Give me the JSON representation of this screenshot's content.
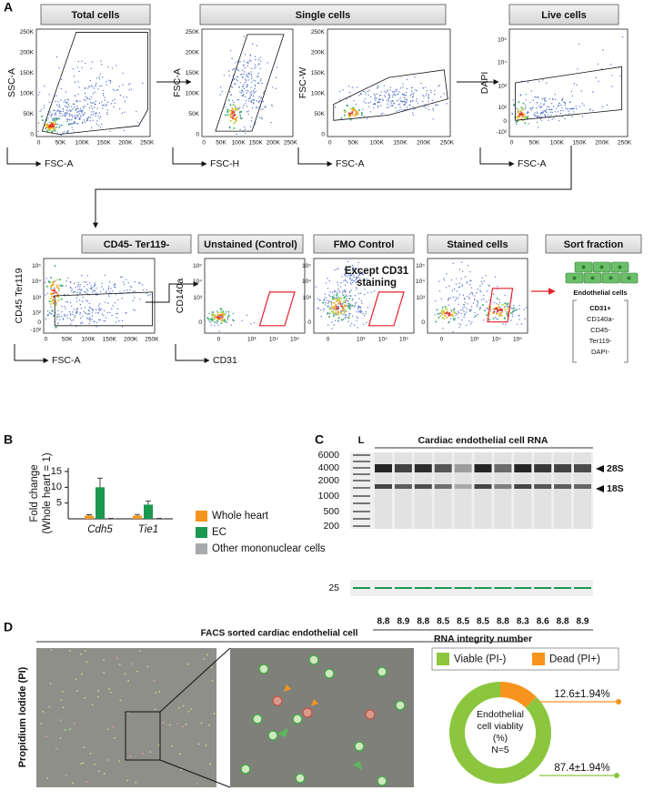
{
  "panel_labels": [
    "A",
    "B",
    "C",
    "D"
  ],
  "flow": {
    "headers": [
      "Total cells",
      "Single cells",
      "Live cells",
      "CD45- Ter119-",
      "Unstained (Control)",
      "FMO Control",
      "Stained cells",
      "Sort fraction"
    ],
    "plots": [
      {
        "y_label": "SSC-A",
        "x_label": "FSC-A",
        "yticks": [
          "0",
          "50K",
          "100K",
          "150K",
          "200K",
          "250K"
        ],
        "xticks": [
          "0",
          "50K",
          "100K",
          "150K",
          "200K",
          "250K"
        ]
      },
      {
        "y_label": "FSC-A",
        "x_label": "FSC-H",
        "yticks": [
          "0",
          "50K",
          "100K",
          "150K",
          "200K",
          "250K"
        ],
        "xticks": [
          "0",
          "50K",
          "100K",
          "150K",
          "200K",
          "250K"
        ]
      },
      {
        "y_label": "FSC-W",
        "x_label": "FSC-A",
        "yticks": [
          "0",
          "50K",
          "100K",
          "150K",
          "200K",
          "250K"
        ],
        "xticks": [
          "0",
          "50K",
          "100K",
          "150K",
          "200K",
          "250K"
        ]
      },
      {
        "y_label": "DAPI",
        "x_label": "FSC-A",
        "yticks": [
          "-10²",
          "0",
          "10²",
          "10³",
          "10⁴",
          "10⁵"
        ],
        "xticks": [
          "0",
          "50K",
          "100K",
          "150K",
          "200K",
          "250K"
        ]
      },
      {
        "y_label": "CD45 Ter119",
        "x_label": "FSC-A",
        "yticks": [
          "-10²",
          "0",
          "10²",
          "10³",
          "10⁴",
          "10⁵"
        ],
        "xticks": [
          "0",
          "50K",
          "100K",
          "150K",
          "200K",
          "250K"
        ]
      },
      {
        "y_label": "CD140a",
        "x_label": "CD31",
        "yticks": [
          "0",
          "10³",
          "10⁴",
          "10⁵"
        ],
        "xticks": [
          "0",
          "10³",
          "10⁴",
          "10⁵"
        ]
      },
      {
        "yticks": [
          "0",
          "10³",
          "10⁴",
          "10⁵"
        ],
        "xticks": [
          "0",
          "10³",
          "10⁴",
          "10⁵"
        ]
      },
      {
        "yticks": [
          "0",
          "10³",
          "10⁴",
          "10⁵"
        ],
        "xticks": [
          "0",
          "10³",
          "10⁴",
          "10⁵"
        ]
      }
    ],
    "fmo_note": [
      "Except CD31",
      "staining"
    ],
    "sort_fraction": {
      "cell_label": "Endothelial cells",
      "markers": [
        "CD31+",
        "CD140a-",
        "CD45-",
        "Ter119-",
        "DAPI-"
      ]
    }
  },
  "chart_data": [
    {
      "type": "bar",
      "categories": [
        "Cdh5",
        "Tie1"
      ],
      "series": [
        {
          "name": "Whole heart",
          "color": "#f7941d",
          "values": [
            1.0,
            1.0
          ],
          "errors": [
            0.3,
            0.4
          ]
        },
        {
          "name": "EC",
          "color": "#1a9850",
          "values": [
            10.0,
            4.5
          ],
          "errors": [
            2.9,
            1.1
          ]
        },
        {
          "name": "Other mononuclear cells",
          "color": "#a7a9ac",
          "values": [
            0.1,
            0.1
          ],
          "errors": [
            0.05,
            0.05
          ]
        }
      ],
      "y_label": [
        "Fold change",
        "(Whole heart = 1)"
      ],
      "ylim": [
        0,
        15
      ],
      "yticks": [
        5,
        10,
        15
      ]
    },
    {
      "type": "pie",
      "categories": [
        "Viable (PI-)",
        "Dead (PI+)"
      ],
      "values": [
        87.4,
        12.6
      ],
      "value_labels": [
        "87.4±1.94%",
        "12.6±1.94%"
      ],
      "colors": [
        "#8cc63f",
        "#f7941d"
      ],
      "center_label": [
        "Endothelial",
        "cell viablity",
        "(%)",
        "N=5"
      ]
    }
  ],
  "gel": {
    "title": "Cardiac endothelial cell RNA",
    "ladder_label": "L",
    "ladder": [
      6000,
      4000,
      2000,
      1000,
      500,
      200,
      25
    ],
    "bands": [
      "28S",
      "18S"
    ],
    "rin": [
      8.8,
      8.9,
      8.8,
      8.5,
      8.5,
      8.5,
      8.8,
      8.3,
      8.6,
      8.8,
      8.9
    ],
    "rin_label": "RNA integrity number"
  },
  "facs_images": {
    "title": "FACS sorted cardiac endothelial cell",
    "y_label": "Propidium Iodide (PI)"
  }
}
